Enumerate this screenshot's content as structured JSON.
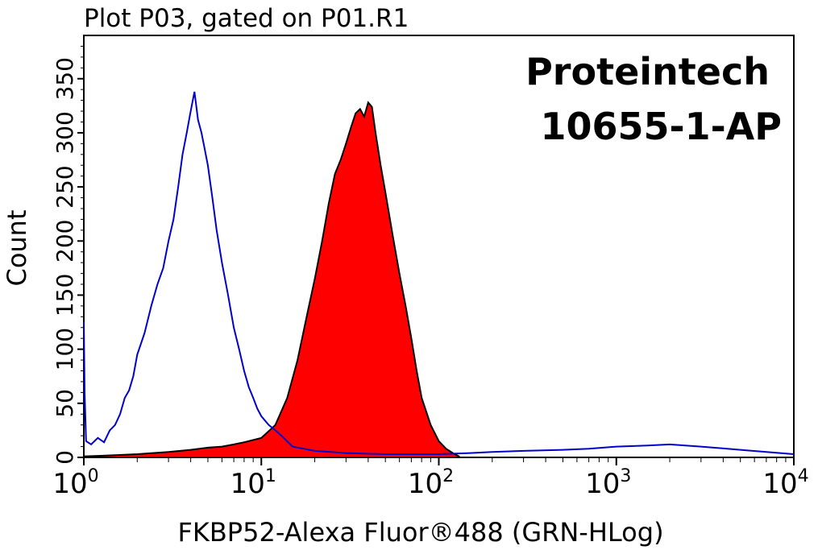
{
  "chart_data": {
    "type": "area",
    "title": "Plot P03, gated on P01.R1",
    "xlabel": "FKBP52-Alexa Fluor®488 (GRN-HLog)",
    "ylabel": "Count",
    "x_scale": "log",
    "xlim": [
      1,
      10000
    ],
    "ylim": [
      0,
      390
    ],
    "x_ticks": [
      {
        "base": "10",
        "exp": "0"
      },
      {
        "base": "10",
        "exp": "1"
      },
      {
        "base": "10",
        "exp": "2"
      },
      {
        "base": "10",
        "exp": "3"
      },
      {
        "base": "10",
        "exp": "4"
      }
    ],
    "y_ticks": [
      "0",
      "50",
      "100",
      "150",
      "200",
      "250",
      "300",
      "350"
    ],
    "annotations": [
      "Proteintech",
      "10655-1-AP"
    ],
    "series": [
      {
        "style": "outline",
        "color": "#0000cc",
        "x": [
          1.0,
          1.01,
          1.03,
          1.1,
          1.2,
          1.3,
          1.4,
          1.5,
          1.6,
          1.7,
          1.8,
          1.9,
          2.0,
          2.2,
          2.4,
          2.6,
          2.8,
          3.0,
          3.2,
          3.4,
          3.6,
          3.8,
          4.0,
          4.2,
          4.4,
          4.6,
          4.8,
          5.0,
          5.3,
          5.6,
          6.0,
          6.5,
          7.0,
          7.5,
          8.0,
          8.5,
          9.0,
          9.5,
          10.0,
          11.0,
          12.0,
          13.0,
          15.0,
          20.0,
          30.0,
          50.0,
          100.0,
          150.0,
          200.0,
          300.0,
          500.0,
          700.0,
          1000.0,
          1500.0,
          2000.0,
          3000.0,
          5000.0,
          7000.0,
          10000.0
        ],
        "values": [
          125,
          60,
          15,
          12,
          18,
          14,
          25,
          30,
          40,
          55,
          62,
          75,
          95,
          115,
          140,
          160,
          175,
          200,
          220,
          250,
          280,
          300,
          320,
          338,
          312,
          300,
          285,
          270,
          240,
          210,
          180,
          150,
          120,
          100,
          80,
          65,
          55,
          45,
          38,
          30,
          25,
          20,
          10,
          6,
          4,
          3,
          3,
          4,
          5,
          6,
          7,
          8,
          10,
          11,
          12,
          10,
          7,
          5,
          3
        ]
      },
      {
        "style": "filled",
        "color": "#ff0000",
        "x": [
          1.0,
          1.5,
          2.0,
          3.0,
          4.0,
          5.0,
          6.0,
          7.0,
          8.0,
          10.0,
          12.0,
          14.0,
          16.0,
          18.0,
          20.0,
          22.0,
          24.0,
          26.0,
          28.0,
          30.0,
          32.0,
          34.0,
          36.0,
          38.0,
          40.0,
          42.0,
          44.0,
          47.0,
          50.0,
          55.0,
          60.0,
          65.0,
          70.0,
          75.0,
          80.0,
          90.0,
          100.0,
          110.0,
          120.0,
          130.0
        ],
        "values": [
          1,
          2,
          3,
          5,
          7,
          9,
          10,
          12,
          14,
          18,
          30,
          55,
          90,
          130,
          165,
          200,
          235,
          262,
          275,
          290,
          305,
          318,
          322,
          315,
          328,
          324,
          300,
          270,
          245,
          205,
          170,
          140,
          110,
          80,
          55,
          30,
          15,
          8,
          4,
          1
        ]
      }
    ]
  }
}
